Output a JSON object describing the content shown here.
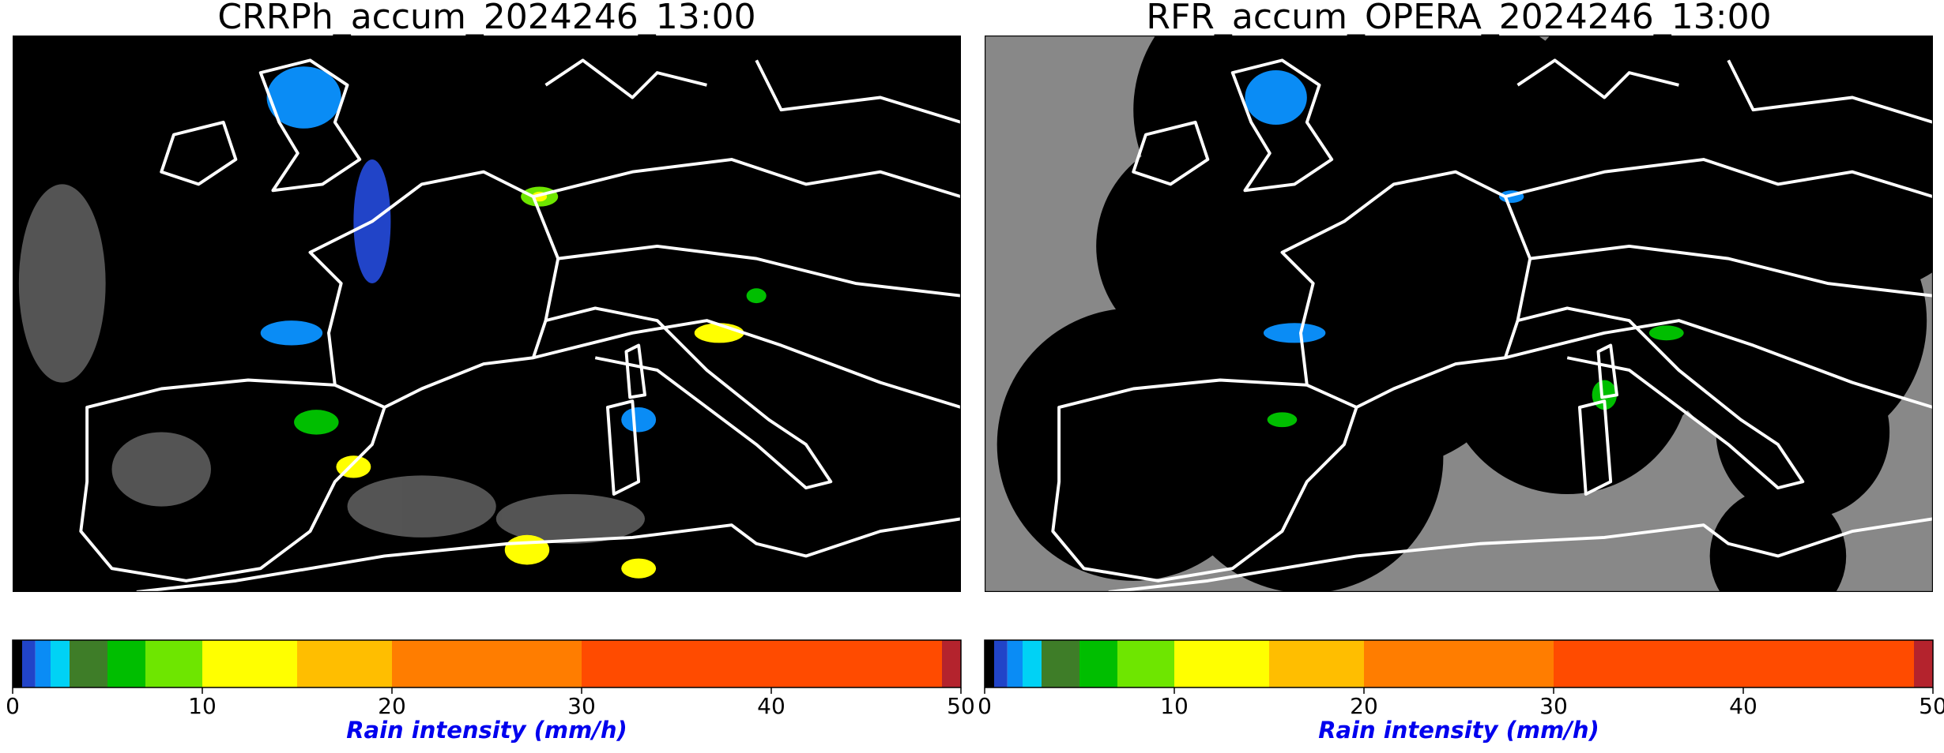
{
  "panels": [
    {
      "title": "CRRPh_accum_2024246_13:00",
      "colorbar": {
        "bounds": [
          0,
          0.5,
          1.2,
          2,
          3,
          5,
          7,
          10,
          15,
          20,
          30,
          49,
          50
        ],
        "colors": [
          "#000000",
          "#2144c8",
          "#0a8cf5",
          "#00d2f5",
          "#3e7d28",
          "#00be00",
          "#6ee600",
          "#ffff00",
          "#ffbe00",
          "#ff7d00",
          "#ff4b00",
          "#b4232d"
        ],
        "xlim": [
          0,
          50
        ],
        "xticks": [
          0,
          10,
          20,
          30,
          40,
          50
        ],
        "label": "Rain intensity (mm/h)"
      }
    },
    {
      "title": "RFR_accum_OPERA_2024246_13:00",
      "colorbar": {
        "bounds": [
          0,
          0.5,
          1.2,
          2,
          3,
          5,
          7,
          10,
          15,
          20,
          30,
          49,
          50
        ],
        "colors": [
          "#000000",
          "#2144c8",
          "#0a8cf5",
          "#00d2f5",
          "#3e7d28",
          "#00be00",
          "#6ee600",
          "#ffff00",
          "#ffbe00",
          "#ff7d00",
          "#ff4b00",
          "#b4232d"
        ],
        "xlim": [
          0,
          50
        ],
        "xticks": [
          0,
          10,
          20,
          30,
          40,
          50
        ],
        "label": "Rain intensity (mm/h)"
      }
    }
  ]
}
